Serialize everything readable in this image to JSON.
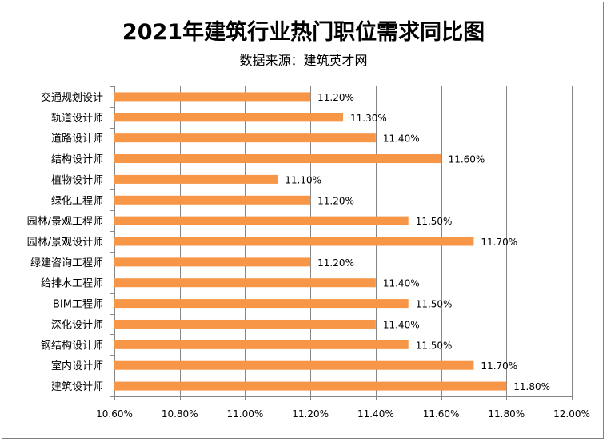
{
  "chart_data": {
    "type": "bar",
    "orientation": "horizontal",
    "title": "2021年建筑行业热门职位需求同比图",
    "subtitle": "数据来源：建筑英才网",
    "categories": [
      "交通规划设计",
      "轨道设计师",
      "道路设计师",
      "结构设计师",
      "植物设计师",
      "绿化工程师",
      "园林/景观工程师",
      "园林/景观设计师",
      "绿建咨询工程师",
      "给排水工程师",
      "BIM工程师",
      "深化设计师",
      "钢结构设计师",
      "室内设计师",
      "建筑设计师"
    ],
    "values": [
      11.2,
      11.3,
      11.4,
      11.6,
      11.1,
      11.2,
      11.5,
      11.7,
      11.2,
      11.4,
      11.5,
      11.4,
      11.5,
      11.7,
      11.8
    ],
    "value_labels": [
      "11.20%",
      "11.30%",
      "11.40%",
      "11.60%",
      "11.10%",
      "11.20%",
      "11.50%",
      "11.70%",
      "11.20%",
      "11.40%",
      "11.50%",
      "11.40%",
      "11.50%",
      "11.70%",
      "11.80%"
    ],
    "xlim": [
      10.6,
      12.0
    ],
    "x_ticks": [
      10.6,
      10.8,
      11.0,
      11.2,
      11.4,
      11.6,
      11.8,
      12.0
    ],
    "x_tick_labels": [
      "10.60%",
      "10.80%",
      "11.00%",
      "11.20%",
      "11.40%",
      "11.60%",
      "11.80%",
      "12.00%"
    ],
    "grid": true,
    "legend": "none",
    "bar_color": "#f79646",
    "grid_color": "#868686"
  }
}
